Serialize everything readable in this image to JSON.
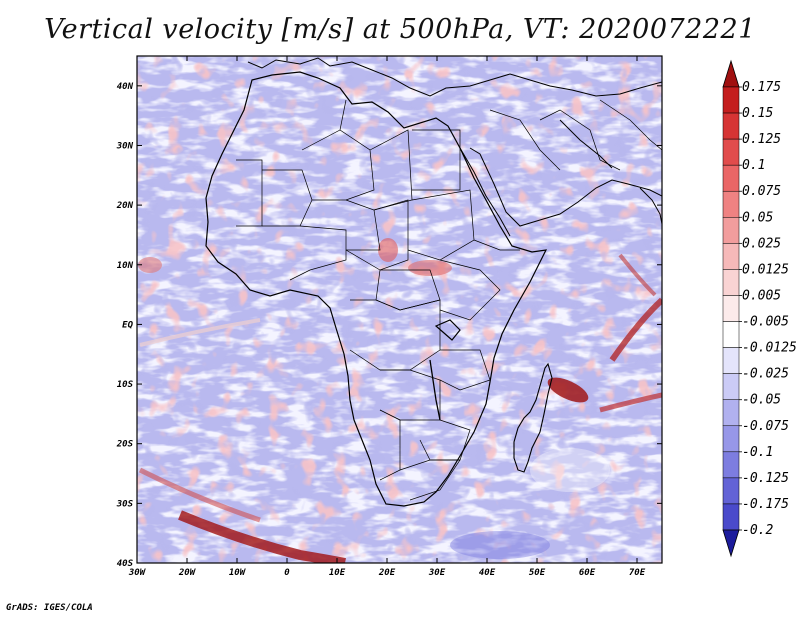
{
  "title": "Vertical velocity [m/s] at 500hPa, VT: 2020072221",
  "credit": "GrADS: IGES/COLA",
  "map": {
    "lon_range": [
      -30,
      75
    ],
    "lat_range": [
      -40,
      45
    ],
    "lon_ticks": [
      {
        "lon": -30,
        "label": "30W"
      },
      {
        "lon": -20,
        "label": "20W"
      },
      {
        "lon": -10,
        "label": "10W"
      },
      {
        "lon": 0,
        "label": "0"
      },
      {
        "lon": 10,
        "label": "10E"
      },
      {
        "lon": 20,
        "label": "20E"
      },
      {
        "lon": 30,
        "label": "30E"
      },
      {
        "lon": 40,
        "label": "40E"
      },
      {
        "lon": 50,
        "label": "50E"
      },
      {
        "lon": 60,
        "label": "60E"
      },
      {
        "lon": 70,
        "label": "70E"
      }
    ],
    "lat_ticks": [
      {
        "lat": 40,
        "label": "40N"
      },
      {
        "lat": 30,
        "label": "30N"
      },
      {
        "lat": 20,
        "label": "20N"
      },
      {
        "lat": 10,
        "label": "10N"
      },
      {
        "lat": 0,
        "label": "EQ"
      },
      {
        "lat": -10,
        "label": "10S"
      },
      {
        "lat": -20,
        "label": "20S"
      },
      {
        "lat": -30,
        "label": "30S"
      },
      {
        "lat": -40,
        "label": "40S"
      }
    ]
  },
  "colorbar": {
    "levels": [
      {
        "label": "0.175",
        "color": "#c41e1e"
      },
      {
        "label": "0.15",
        "color": "#d63434"
      },
      {
        "label": "0.125",
        "color": "#e14c4c"
      },
      {
        "label": "0.1",
        "color": "#ea6666"
      },
      {
        "label": "0.075",
        "color": "#ef8282"
      },
      {
        "label": "0.05",
        "color": "#f29d9d"
      },
      {
        "label": "0.025",
        "color": "#f6b9b9"
      },
      {
        "label": "0.0125",
        "color": "#f9d3d3"
      },
      {
        "label": "0.005",
        "color": "#fcebeb"
      },
      {
        "label": "-0.005",
        "color": "#ffffff"
      },
      {
        "label": "-0.0125",
        "color": "#e4e4fb"
      },
      {
        "label": "-0.025",
        "color": "#cbcbf6"
      },
      {
        "label": "-0.05",
        "color": "#b1b1ef"
      },
      {
        "label": "-0.075",
        "color": "#9797e8"
      },
      {
        "label": "-0.1",
        "color": "#7d7de0"
      },
      {
        "label": "-0.125",
        "color": "#6363d6"
      },
      {
        "label": "-0.175",
        "color": "#4a4acb"
      },
      {
        "label": "-0.2",
        "color": "#2f2fb8"
      }
    ],
    "top_arrow_color": "#a01010",
    "bottom_arrow_color": "#1c1c9c"
  }
}
